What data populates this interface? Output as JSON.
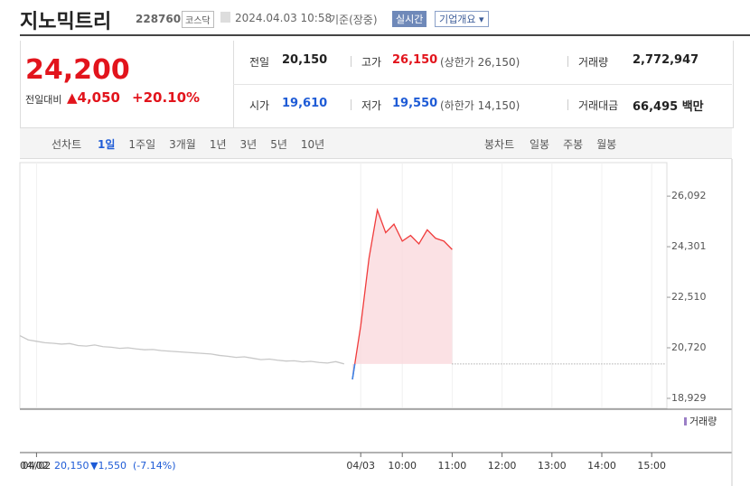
{
  "header": {
    "title": "지노믹트리",
    "code": "228760",
    "market": "코스닥",
    "timestamp": "2024.04.03 10:58",
    "basis": "기준(장중)",
    "realtime_button": "실시간",
    "overview_button": "기업개요 ▾"
  },
  "quote": {
    "price": "24,200",
    "change_label": "전일대비",
    "change": "▲4,050",
    "rate": "+20.10%",
    "rows": [
      [
        {
          "label": "전일",
          "value": "20,150"
        },
        {
          "label": "고가",
          "value": "26,150",
          "note": "(상한가 26,150)"
        },
        {
          "label": "거래량",
          "value": "2,772,947"
        }
      ],
      [
        {
          "label": "시가",
          "value": "19,610"
        },
        {
          "label": "저가",
          "value": "19,550",
          "note": "(하한가 14,150)"
        },
        {
          "label": "거래대금",
          "value": "66,495 백만"
        }
      ]
    ]
  },
  "tabs": {
    "line_label": "선차트",
    "line_periods": [
      "1일",
      "1주일",
      "3개월",
      "1년",
      "3년",
      "5년",
      "10년"
    ],
    "candle_label": "봉차트",
    "candle_periods": [
      "일봉",
      "주봉",
      "월봉"
    ]
  },
  "chart_data": {
    "type": "line",
    "categories": [
      null,
      null,
      "04/02",
      null,
      null,
      null,
      null,
      null,
      null,
      null,
      null,
      null,
      null,
      null,
      null,
      null,
      null,
      null,
      null,
      null,
      null,
      null,
      null,
      null,
      null,
      null,
      null,
      null,
      null,
      null,
      null,
      null,
      null,
      null,
      null,
      null,
      null,
      null,
      null,
      null,
      null,
      "04/03",
      null,
      null,
      null,
      null,
      "10:00",
      null,
      null,
      null,
      null,
      null,
      "11:00",
      null,
      null,
      null,
      null,
      null,
      "12:00",
      null,
      null,
      null,
      null,
      null,
      "13:00",
      null,
      null,
      null,
      null,
      null,
      "14:00",
      null,
      null,
      null,
      null,
      null,
      "15:00"
    ],
    "series": [
      {
        "color": "#c8c8c8",
        "values": [
          21150,
          21000,
          20950,
          20900,
          20880,
          20850,
          20870,
          20800,
          20780,
          20820,
          20760,
          20740,
          20700,
          20720,
          20680,
          20650,
          20660,
          20620,
          20600,
          20580,
          20560,
          20540,
          20520,
          20500,
          20450,
          20420,
          20380,
          20400,
          20350,
          20300,
          20320,
          20280,
          20250,
          20260,
          20220,
          20240,
          20200,
          20180,
          20230,
          20150,
          null,
          null,
          null,
          null,
          null,
          null,
          null,
          null,
          null,
          null,
          null,
          null,
          null,
          null,
          null,
          null,
          null,
          null,
          null,
          null,
          null,
          null,
          null,
          null,
          null,
          null,
          null,
          null,
          null,
          null,
          null,
          null,
          null,
          null,
          null,
          null,
          null
        ]
      },
      {
        "color": "#f03c3c",
        "down_color": "#3c82e6",
        "fill": "#fadadd",
        "values": [
          null,
          null,
          null,
          null,
          null,
          null,
          null,
          null,
          null,
          null,
          null,
          null,
          null,
          null,
          null,
          null,
          null,
          null,
          null,
          null,
          null,
          null,
          null,
          null,
          null,
          null,
          null,
          null,
          null,
          null,
          null,
          null,
          null,
          null,
          null,
          null,
          null,
          null,
          null,
          null,
          19600,
          21500,
          23900,
          25600,
          24800,
          25100,
          24500,
          24700,
          24400,
          24900,
          24600,
          24500,
          24200,
          null,
          null,
          null,
          null,
          null,
          null,
          null,
          null,
          null,
          null,
          null,
          null,
          null,
          null,
          null,
          null,
          null,
          null,
          null,
          null,
          null,
          null,
          null,
          null
        ]
      }
    ],
    "reference": 20150,
    "ylim": [
      18640,
      26960
    ],
    "yticks": [
      {
        "value": 26092,
        "label": "26,092"
      },
      {
        "value": 24301,
        "label": "24,301"
      },
      {
        "value": 22510,
        "label": "22,510"
      },
      {
        "value": 20720,
        "label": "20,720"
      },
      {
        "value": 18929,
        "label": "18,929"
      }
    ],
    "volume_label": "거래량",
    "footer": {
      "date": "04/02",
      "price": "20,150",
      "change": "▼1,550",
      "rate": "(-7.14%)"
    }
  }
}
